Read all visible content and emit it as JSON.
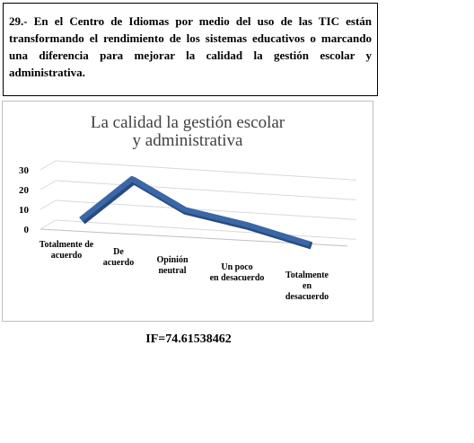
{
  "question": "29.- En el Centro de Idiomas por medio del uso de las TIC están transformando el rendimiento de los sistemas educativos o marcando una diferencia para mejorar la calidad la gestión escolar y administrativa.",
  "chart_data": {
    "type": "line",
    "title": "La calidad la gestión escolar y administrativa",
    "categories": [
      "Totalmente de acuerdo",
      "De acuerdo",
      "Opinión neutral",
      "Un poco en desacuerdo",
      "Totalmente en desacuerdo"
    ],
    "values": [
      6,
      28,
      14,
      8,
      0
    ],
    "color": "#3a67a8",
    "ylim": [
      0,
      30
    ],
    "yticks": [
      0,
      10,
      20,
      30
    ],
    "grid": true
  },
  "footer": "IF=74.61538462"
}
